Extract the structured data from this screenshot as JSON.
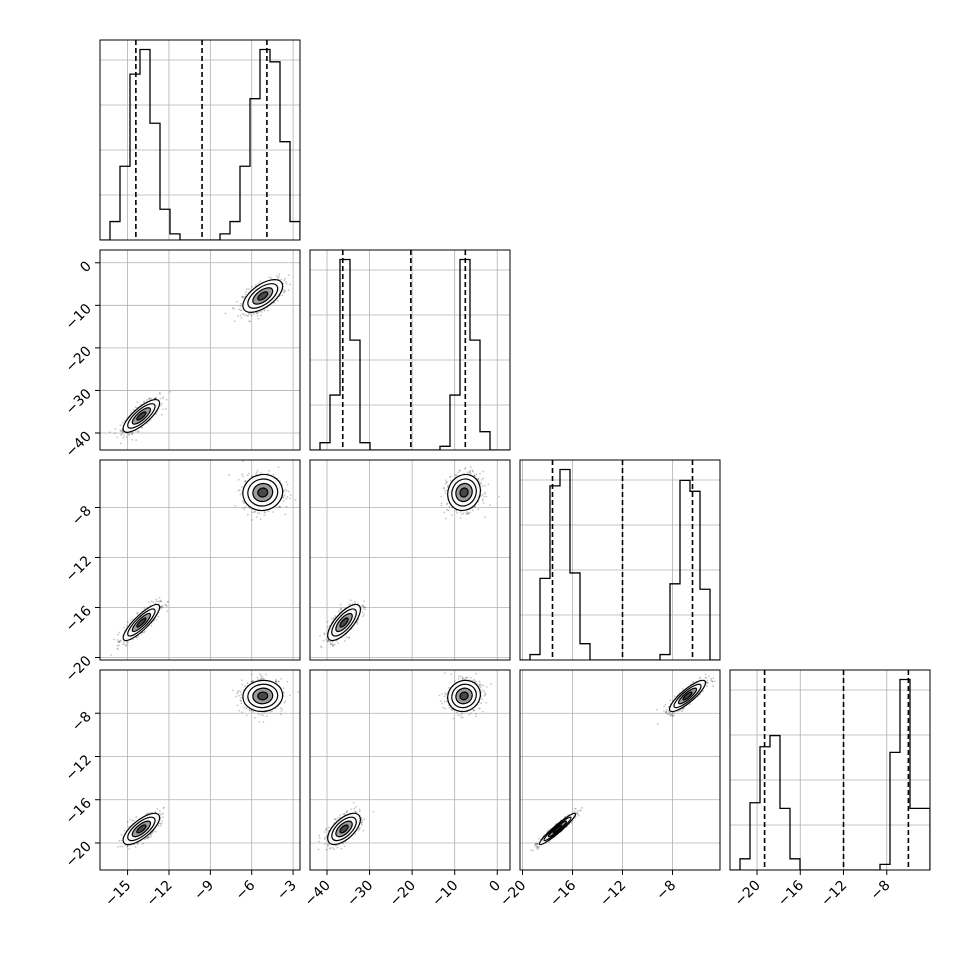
{
  "chart_data": {
    "type": "corner",
    "dims": 4,
    "axes": [
      {
        "range": [
          -17,
          -2.5
        ],
        "ticks": [
          -15,
          -12,
          -9,
          -6,
          -3
        ],
        "tick_labels": [
          "−15",
          "−12",
          "−9",
          "−6",
          "−3"
        ]
      },
      {
        "range": [
          -44,
          3
        ],
        "ticks": [
          -40,
          -30,
          -20,
          -10,
          0
        ],
        "tick_labels": [
          "−40",
          "−30",
          "−20",
          "−10",
          "0"
        ]
      },
      {
        "range": [
          -20.2,
          -4.2
        ],
        "ticks": [
          -20,
          -16,
          -12,
          -8
        ],
        "tick_labels": [
          "−20",
          "−16",
          "−12",
          "−8"
        ]
      },
      {
        "range": [
          -22.5,
          -4
        ],
        "ticks": [
          -20,
          -16,
          -12,
          -8
        ],
        "tick_labels": [
          "−20",
          "−16",
          "−12",
          "−8"
        ]
      }
    ],
    "clusters": [
      {
        "means": [
          -14,
          -36,
          -17.2,
          -18.7
        ],
        "sd": [
          0.55,
          1.6,
          0.6,
          0.6
        ]
      },
      {
        "means": [
          -5.2,
          -7.8,
          -6.8,
          -6.4
        ],
        "sd": [
          0.6,
          1.6,
          0.6,
          0.6
        ]
      }
    ],
    "quantiles": [
      [
        -14.4,
        -9.6,
        -4.9
      ],
      [
        -36.3,
        -20.3,
        -7.5
      ],
      [
        -17.6,
        -12.0,
        -6.4
      ],
      [
        -19.3,
        -12.0,
        -6.0
      ]
    ],
    "histograms": [
      {
        "edges": [
          -17,
          -16.275,
          -15.55,
          -14.825,
          -14.1,
          -13.375,
          -12.65,
          -11.925,
          -11.2,
          -10.475,
          -9.75,
          -9.025,
          -8.3,
          -7.575,
          -6.85,
          -6.125,
          -5.4,
          -4.675,
          -3.95,
          -3.225,
          -2.5
        ],
        "counts": [
          0,
          3,
          12,
          27,
          31,
          19,
          5,
          1,
          0,
          0,
          0,
          0,
          1,
          3,
          12,
          23,
          31,
          29,
          16,
          3
        ]
      },
      {
        "edges": [
          -44,
          -41.65,
          -39.3,
          -36.95,
          -34.6,
          -32.25,
          -29.9,
          -27.55,
          -25.2,
          -22.85,
          -20.5,
          -18.15,
          -15.8,
          -13.45,
          -11.1,
          -8.75,
          -6.4,
          -4.05,
          -1.7,
          0.65,
          3
        ],
        "counts": [
          0,
          2,
          15,
          52,
          30,
          2,
          0,
          0,
          0,
          0,
          0,
          0,
          0,
          1,
          15,
          52,
          30,
          5,
          0,
          0
        ]
      },
      {
        "edges": [
          -20.2,
          -19.4,
          -18.6,
          -17.8,
          -17.0,
          -16.2,
          -15.4,
          -14.6,
          -13.8,
          -13.0,
          -12.2,
          -11.4,
          -10.6,
          -9.8,
          -9.0,
          -8.2,
          -7.4,
          -6.6,
          -5.8,
          -5.0,
          -4.2
        ],
        "counts": [
          0,
          1,
          15,
          32,
          35,
          16,
          3,
          0,
          0,
          0,
          0,
          0,
          0,
          0,
          1,
          14,
          33,
          31,
          13,
          0
        ]
      },
      {
        "edges": [
          -22.5,
          -21.575,
          -20.65,
          -19.725,
          -18.8,
          -17.875,
          -16.95,
          -16.025,
          -15.1,
          -14.175,
          -13.25,
          -12.325,
          -11.4,
          -10.475,
          -9.55,
          -8.625,
          -7.7,
          -6.775,
          -5.85,
          -4.925,
          -4.0
        ],
        "counts": [
          0,
          2,
          12,
          22,
          24,
          11,
          2,
          0,
          0,
          0,
          0,
          0,
          0,
          0,
          0,
          1,
          21,
          34,
          11,
          11
        ]
      }
    ],
    "contour_levels_sigma": [
      0.5,
      1,
      1.5,
      2
    ],
    "grid": true,
    "colors": {
      "line": "#000000",
      "grid": "#b0b0b0",
      "fill_dark": "#3a3a3a",
      "fill_mid": "#8c8c8c",
      "fill_light": "#d9d9d9",
      "points": "#000000"
    }
  }
}
